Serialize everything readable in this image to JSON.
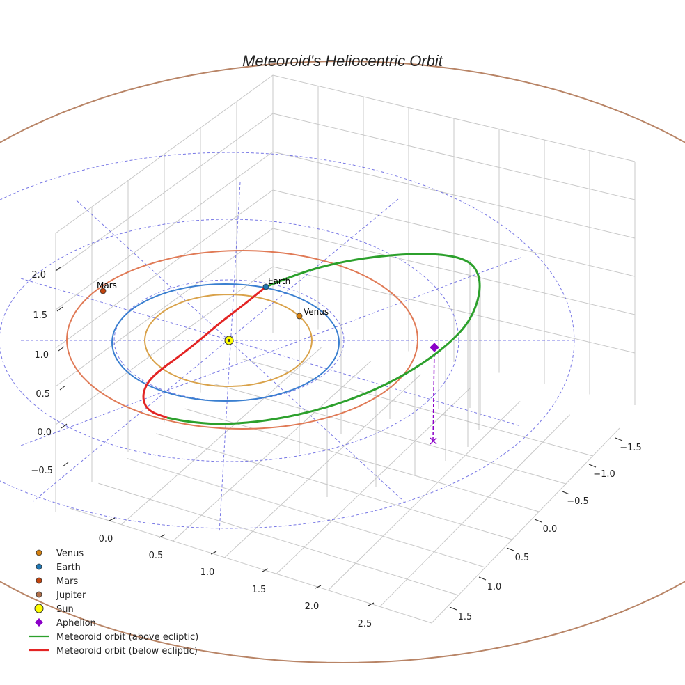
{
  "chart_data": {
    "type": "scatter",
    "title": "Meteoroid's Heliocentric Orbit",
    "axes": {
      "x": {
        "ticks": [
          "0.0",
          "0.5",
          "1.0",
          "1.5",
          "2.0",
          "2.5"
        ]
      },
      "y": {
        "ticks": [
          "−1.5",
          "−1.0",
          "−0.5",
          "0.0",
          "0.5",
          "1.0",
          "1.5"
        ]
      },
      "z": {
        "ticks": [
          "−0.5",
          "0.0",
          "0.5",
          "1.0",
          "1.5",
          "2.0"
        ]
      }
    },
    "bodies": [
      {
        "name": "Venus",
        "color": "#d4800f",
        "label": "Venus",
        "orbit_color": "#d9a24a"
      },
      {
        "name": "Earth",
        "color": "#1f77b4",
        "label": "Earth",
        "orbit_color": "#3a7fd0"
      },
      {
        "name": "Mars",
        "color": "#c1440e",
        "label": "Mars",
        "orbit_color": "#e07a56"
      },
      {
        "name": "Jupiter",
        "color": "#b0704a",
        "label": "",
        "orbit_color": "#b88466"
      }
    ],
    "sun": {
      "name": "Sun",
      "color": "#ffff00"
    },
    "aphelion": {
      "name": "Aphelion",
      "color": "#8b00c8"
    },
    "meteoroid": {
      "above_label": "Meteoroid orbit (above ecliptic)",
      "below_label": "Meteoroid orbit (below ecliptic)",
      "above_color": "#2ca02c",
      "below_color": "#e32424"
    },
    "legend": [
      {
        "label": "Venus",
        "marker": "circle",
        "color": "#d4800f"
      },
      {
        "label": "Earth",
        "marker": "circle",
        "color": "#1f77b4"
      },
      {
        "label": "Mars",
        "marker": "circle",
        "color": "#c1440e"
      },
      {
        "label": "Jupiter",
        "marker": "circle",
        "color": "#b0704a"
      },
      {
        "label": "Sun",
        "marker": "circle-large",
        "color": "#ffff00"
      },
      {
        "label": "Aphelion",
        "marker": "diamond",
        "color": "#8b00c8"
      },
      {
        "label": "Meteoroid orbit (above ecliptic)",
        "marker": "line",
        "color": "#2ca02c"
      },
      {
        "label": "Meteoroid orbit (below ecliptic)",
        "marker": "line",
        "color": "#e32424"
      }
    ],
    "ecliptic_grid_color": "#6060e0",
    "box_grid_color": "#c8c8c8"
  }
}
